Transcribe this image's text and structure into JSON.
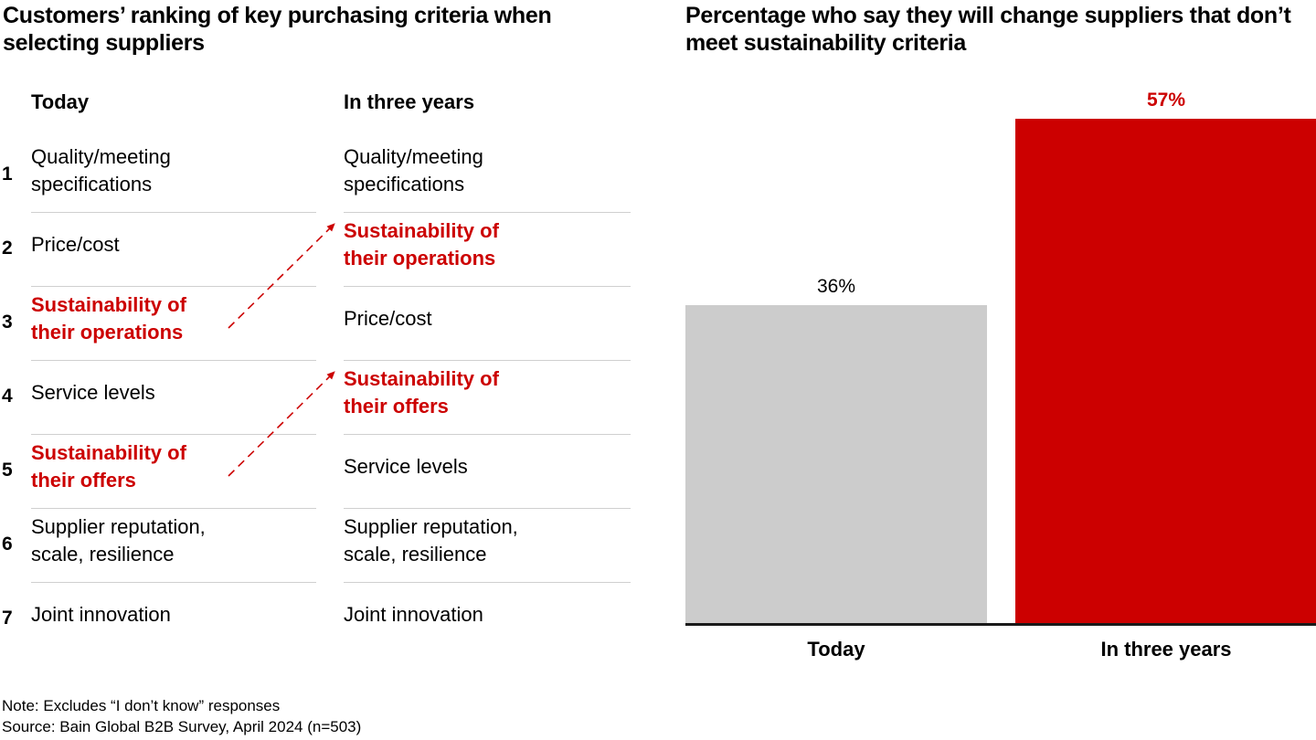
{
  "left_panel": {
    "title": "Customers’ ranking of key purchasing criteria when selecting suppliers",
    "columns": [
      "Today",
      "In three years"
    ],
    "ranks": [
      "1",
      "2",
      "3",
      "4",
      "5",
      "6",
      "7"
    ],
    "today": [
      {
        "text": "Quality/meeting specifications",
        "highlight": false
      },
      {
        "text": "Price/cost",
        "highlight": false
      },
      {
        "text": "Sustainability of their operations",
        "highlight": true
      },
      {
        "text": "Service levels",
        "highlight": false
      },
      {
        "text": "Sustainability of their offers",
        "highlight": true
      },
      {
        "text": "Supplier reputation, scale, resilience",
        "highlight": false
      },
      {
        "text": "Joint innovation",
        "highlight": false
      }
    ],
    "in_three_years": [
      {
        "text": "Quality/meeting specifications",
        "highlight": false
      },
      {
        "text": "Sustainability of their operations",
        "highlight": true
      },
      {
        "text": "Price/cost",
        "highlight": false
      },
      {
        "text": "Sustainability of their offers",
        "highlight": true
      },
      {
        "text": "Service levels",
        "highlight": false
      },
      {
        "text": "Supplier reputation, scale, resilience",
        "highlight": false
      },
      {
        "text": "Joint innovation",
        "highlight": false
      }
    ],
    "moves": [
      {
        "item": "Sustainability of their operations",
        "from_rank": 3,
        "to_rank": 2
      },
      {
        "item": "Sustainability of their offers",
        "from_rank": 5,
        "to_rank": 4
      }
    ]
  },
  "chart_data": {
    "type": "bar",
    "title": "Percentage who say they will change suppliers that don’t meet sustainability criteria",
    "categories": [
      "Today",
      "In three years"
    ],
    "values": [
      36,
      57
    ],
    "value_labels": [
      "36%",
      "57%"
    ],
    "colors": [
      "#cccccc",
      "#cc0000"
    ],
    "label_colors": [
      "#000000",
      "#cc0000"
    ],
    "xlabel": "",
    "ylabel": "",
    "ylim": [
      0,
      57
    ],
    "grid": false,
    "legend": "none"
  },
  "colors": {
    "accent": "#cc0000",
    "divider": "#cfcfcf",
    "text": "#000000"
  },
  "footer": {
    "note": "Note: Excludes “I don’t know” responses",
    "source": "Source: Bain Global B2B Survey, April 2024 (n=503)"
  }
}
